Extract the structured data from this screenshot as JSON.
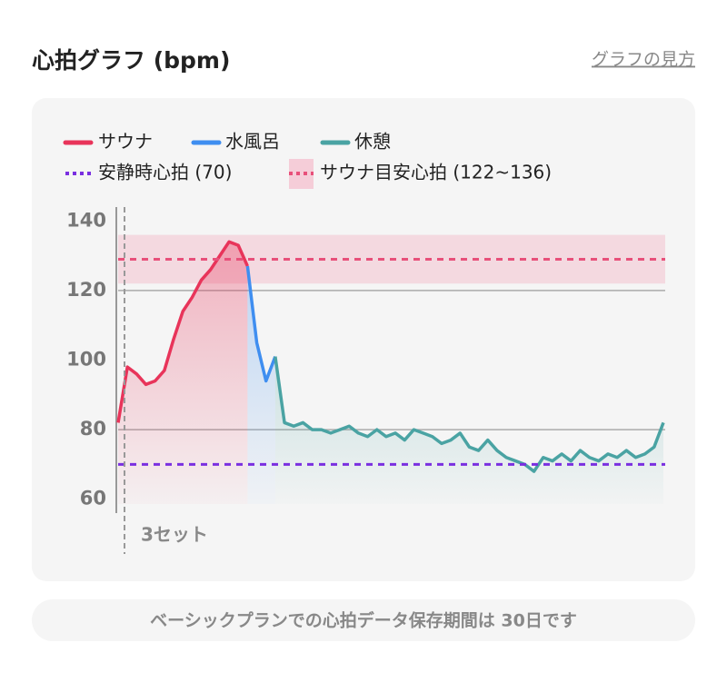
{
  "header": {
    "title": "心拍グラフ (bpm)",
    "link": "グラフの見方"
  },
  "chart_data": {
    "type": "line",
    "series": [
      {
        "name": "サウナ",
        "color": "#e8345a",
        "values": [
          82,
          98,
          96,
          93,
          94,
          97,
          106,
          114,
          118,
          123,
          126,
          130,
          134,
          133,
          127,
          null,
          null,
          null,
          null,
          null,
          null,
          null,
          null,
          null,
          null,
          null,
          null,
          null,
          null,
          null,
          null,
          null,
          null,
          null,
          null,
          null,
          null,
          null,
          null,
          null,
          null,
          null,
          null,
          null,
          null,
          null,
          null,
          null,
          null,
          null,
          null,
          null,
          null,
          null,
          null,
          null,
          null,
          null,
          null,
          null
        ]
      },
      {
        "name": "水風呂",
        "color": "#3f8ef0",
        "values": [
          null,
          null,
          null,
          null,
          null,
          null,
          null,
          null,
          null,
          null,
          null,
          null,
          null,
          null,
          127,
          105,
          94,
          101,
          null,
          null,
          null,
          null,
          null,
          null,
          null,
          null,
          null,
          null,
          null,
          null,
          null,
          null,
          null,
          null,
          null,
          null,
          null,
          null,
          null,
          null,
          null,
          null,
          null,
          null,
          null,
          null,
          null,
          null,
          null,
          null,
          null,
          null,
          null,
          null,
          null,
          null,
          null,
          null,
          null,
          null
        ]
      },
      {
        "name": "休憩",
        "color": "#4aa3a3",
        "values": [
          null,
          null,
          null,
          null,
          null,
          null,
          null,
          null,
          null,
          null,
          null,
          null,
          null,
          null,
          null,
          null,
          null,
          101,
          82,
          81,
          82,
          80,
          80,
          79,
          80,
          81,
          79,
          78,
          80,
          78,
          79,
          77,
          80,
          79,
          78,
          76,
          77,
          79,
          75,
          74,
          77,
          74,
          72,
          71,
          70,
          68,
          72,
          71,
          73,
          71,
          74,
          72,
          71,
          73,
          72,
          74,
          72,
          73,
          75,
          82
        ]
      }
    ],
    "ylim": [
      56,
      144
    ],
    "yticks": [
      60,
      80,
      100,
      120,
      140
    ],
    "grid_values": [
      80,
      120
    ],
    "resting": {
      "label": "安静時心拍 (70)",
      "value": 70,
      "color": "#7a2fe0"
    },
    "target": {
      "label": "サウナ目安心拍 (122~136)",
      "low": 122,
      "high": 136,
      "color": "#e8507a"
    },
    "annotation": "3セット"
  },
  "footer": {
    "note": "ベーシックプランでの心拍データ保存期間は 30日です"
  }
}
